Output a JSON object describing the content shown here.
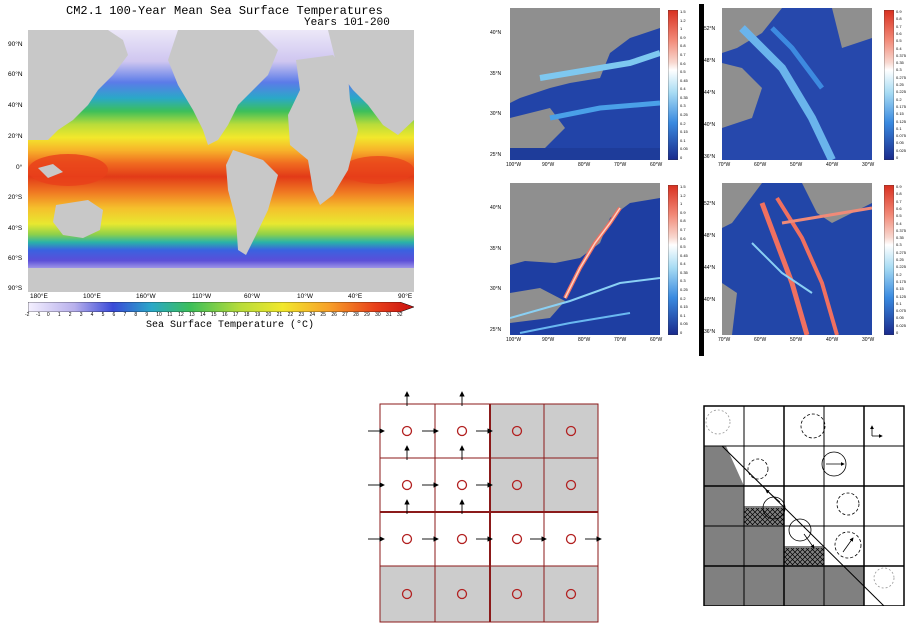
{
  "sst_map": {
    "title": "CM2.1 100-Year Mean Sea Surface Temperatures",
    "subtitle": "Years 101-200",
    "lat_ticks": [
      "90°N",
      "60°N",
      "40°N",
      "20°N",
      "0°",
      "20°S",
      "40°S",
      "60°S",
      "90°S"
    ],
    "lon_ticks": [
      "180°E",
      "100°E",
      "160°W",
      "110°W",
      "60°W",
      "10°W",
      "40°E",
      "90°E"
    ],
    "colorbar_ticks": [
      "-2",
      "-1",
      "0",
      "1",
      "2",
      "3",
      "4",
      "5",
      "6",
      "7",
      "8",
      "9",
      "10",
      "11",
      "12",
      "13",
      "14",
      "15",
      "16",
      "17",
      "18",
      "19",
      "20",
      "21",
      "22",
      "23",
      "24",
      "25",
      "26",
      "27",
      "28",
      "29",
      "30",
      "31",
      "32"
    ],
    "colorbar_label": "Sea Surface Temperature (°C)"
  },
  "gulf_panels": {
    "left_lat_ticks": [
      "40°N",
      "35°N",
      "30°N",
      "25°N"
    ],
    "left_lon_ticks": [
      "100°W",
      "90°W",
      "80°W",
      "70°W",
      "60°W"
    ],
    "right_lat_ticks": [
      "52°N",
      "48°N",
      "44°N",
      "40°N",
      "36°N"
    ],
    "right_lon_ticks": [
      "70°W",
      "60°W",
      "50°W",
      "40°W",
      "30°W"
    ],
    "colorbar_a_ticks": [
      "1.5",
      "1.2",
      "1",
      "0.9",
      "0.8",
      "0.7",
      "0.6",
      "0.5",
      "0.45",
      "0.4",
      "0.35",
      "0.3",
      "0.25",
      "0.2",
      "0.15",
      "0.1",
      "0.05",
      "0"
    ],
    "colorbar_b_ticks": [
      "0.9",
      "0.8",
      "0.7",
      "0.6",
      "0.5",
      "0.4",
      "0.375",
      "0.35",
      "0.3",
      "0.275",
      "0.25",
      "0.225",
      "0.2",
      "0.175",
      "0.15",
      "0.125",
      "0.1",
      "0.075",
      "0.05",
      "0.025",
      "0"
    ]
  },
  "colors": {
    "land": "#9a9a9a",
    "grid_line": "#8b1a1a",
    "cell_fill": "#cccccc",
    "dark_land": "#808080"
  }
}
